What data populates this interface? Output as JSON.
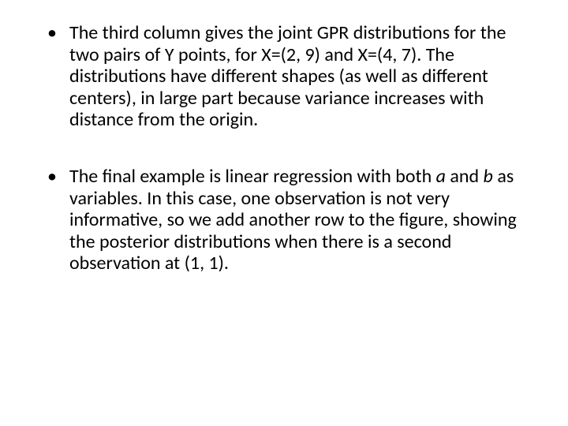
{
  "slide": {
    "background_color": "#ffffff",
    "text_color": "#000000",
    "font_family": "Calibri, 'Segoe UI', Arial, sans-serif",
    "body_fontsize_pt": 24,
    "bullets": [
      {
        "segments": [
          {
            "text": "The third column gives the joint GPR distributions for the two pairs of Y points, for X=(2, 9) and X=(4, 7). The distributions have different shapes (as well as different centers), in large part because variance increases with distance from the origin.",
            "italic": false
          }
        ]
      },
      {
        "segments": [
          {
            "text": "The final example is linear regression with both ",
            "italic": false
          },
          {
            "text": "a",
            "italic": true
          },
          {
            "text": " and ",
            "italic": false
          },
          {
            "text": "b",
            "italic": true
          },
          {
            "text": " as variables. In this case, one observation is not very informative, so we add another row to the figure, showing the posterior distributions when there is a second observation at (1, 1).",
            "italic": false
          }
        ]
      }
    ]
  }
}
